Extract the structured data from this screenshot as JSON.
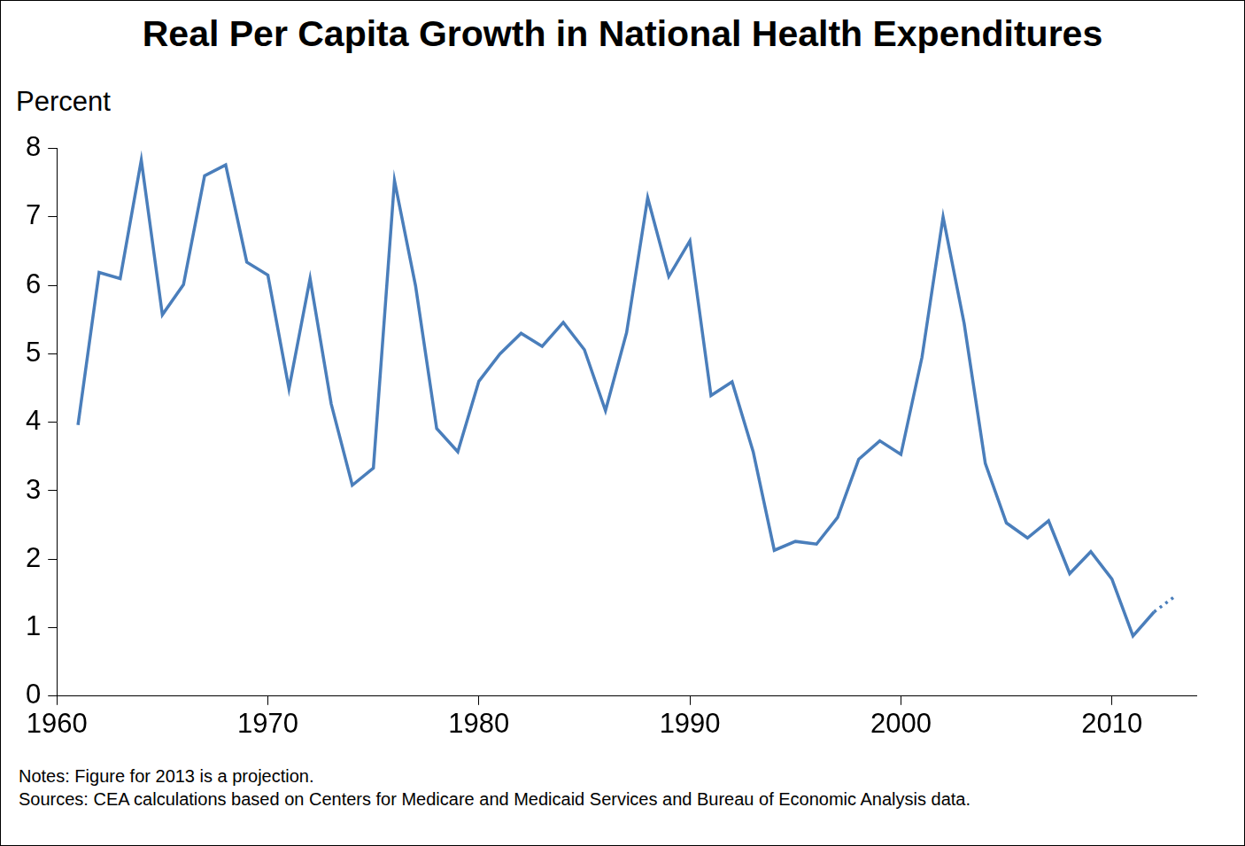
{
  "chart_data": {
    "type": "line",
    "title": "Real Per Capita Growth in National Health Expenditures",
    "y_label": "Percent",
    "notes": "Notes: Figure for 2013 is a projection.",
    "source": "Sources: CEA calculations based on Centers for Medicare and Medicaid Services and Bureau of Economic Analysis data.",
    "x": [
      1961,
      1962,
      1963,
      1964,
      1965,
      1966,
      1967,
      1968,
      1969,
      1970,
      1971,
      1972,
      1973,
      1974,
      1975,
      1976,
      1977,
      1978,
      1979,
      1980,
      1981,
      1982,
      1983,
      1984,
      1985,
      1986,
      1987,
      1988,
      1989,
      1990,
      1991,
      1992,
      1993,
      1994,
      1995,
      1996,
      1997,
      1998,
      1999,
      2000,
      2001,
      2002,
      2003,
      2004,
      2005,
      2006,
      2007,
      2008,
      2009,
      2010,
      2011,
      2012,
      2013
    ],
    "series": [
      {
        "color": "#4a7ebb",
        "line_style": "solid",
        "values": [
          3.96,
          6.19,
          6.1,
          7.83,
          5.57,
          6.01,
          7.6,
          7.76,
          6.34,
          6.15,
          4.49,
          6.1,
          4.27,
          3.08,
          3.33,
          7.53,
          5.99,
          3.91,
          3.57,
          4.6,
          5.0,
          5.3,
          5.11,
          5.46,
          5.06,
          4.17,
          5.31,
          7.28,
          6.13,
          6.65,
          4.39,
          4.59,
          3.57,
          2.13,
          2.26,
          2.22,
          2.61,
          3.46,
          3.73,
          3.53,
          4.95,
          7.0,
          5.44,
          3.4,
          2.53,
          2.31,
          2.56,
          1.79,
          2.11,
          1.71,
          0.88,
          1.23,
          null
        ]
      },
      {
        "color": "#4a7ebb",
        "line_style": "dotted",
        "values": [
          null,
          null,
          null,
          null,
          null,
          null,
          null,
          null,
          null,
          null,
          null,
          null,
          null,
          null,
          null,
          null,
          null,
          null,
          null,
          null,
          null,
          null,
          null,
          null,
          null,
          null,
          null,
          null,
          null,
          null,
          null,
          null,
          null,
          null,
          null,
          null,
          null,
          null,
          null,
          null,
          null,
          null,
          null,
          null,
          null,
          null,
          null,
          null,
          null,
          null,
          null,
          1.23,
          1.46
        ]
      }
    ],
    "xlim": [
      1960,
      2014
    ],
    "xticks": [
      1960,
      1970,
      1980,
      1990,
      2000,
      2010
    ],
    "ylim": [
      0,
      8
    ],
    "yticks": [
      0,
      1,
      2,
      3,
      4,
      5,
      6,
      7,
      8
    ],
    "grid": false,
    "legend": "none"
  }
}
